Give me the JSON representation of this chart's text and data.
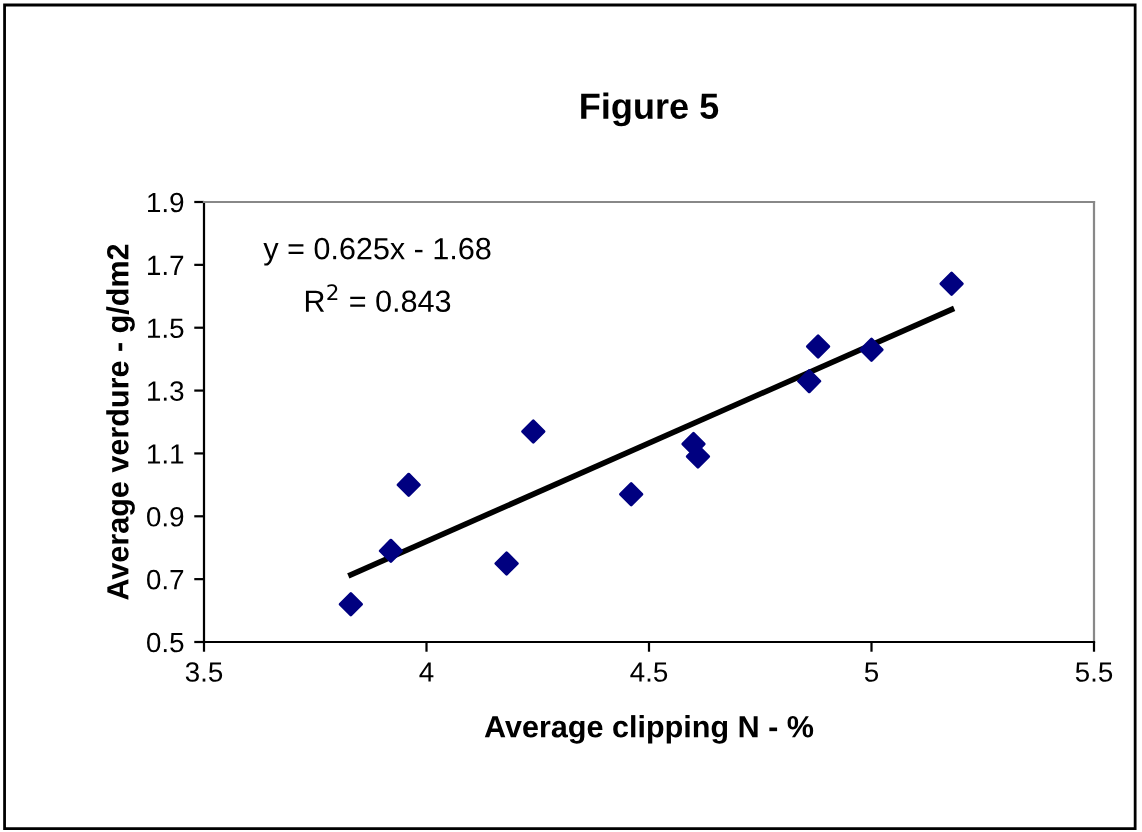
{
  "chart_data": {
    "type": "scatter",
    "title": "Figure 5",
    "xlabel": "Average clipping N - %",
    "ylabel": "Average verdure - g/dm2",
    "x": [
      3.83,
      3.92,
      3.96,
      4.18,
      4.24,
      4.46,
      4.6,
      4.61,
      4.86,
      4.88,
      5.0,
      5.18
    ],
    "series": [
      {
        "color": "#000080",
        "marker": "diamond",
        "values": [
          0.62,
          0.79,
          1.0,
          0.75,
          1.17,
          0.97,
          1.13,
          1.09,
          1.33,
          1.44,
          1.43,
          1.64
        ]
      },
      {
        "type": "line",
        "color": "#000000",
        "marker": "none",
        "x": [
          3.83,
          5.18
        ],
        "values": [
          0.714,
          1.558
        ]
      }
    ],
    "annotations": [
      "y = 0.625x - 1.68",
      "R$^{2}$ = 0.843"
    ],
    "xlim": [
      3.5,
      5.5
    ],
    "xticks": [
      3.5,
      4,
      4.5,
      5,
      5.5
    ],
    "ylim": [
      0.5,
      1.9
    ],
    "yticks": [
      0.5,
      0.7,
      0.9,
      1.1,
      1.3,
      1.5,
      1.7,
      1.9
    ],
    "grid": false,
    "legend": false
  }
}
